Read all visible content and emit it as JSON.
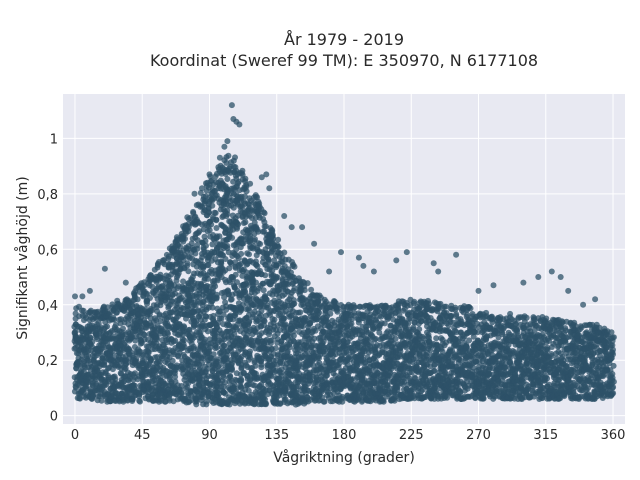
{
  "chart_data": {
    "type": "scatter",
    "title_line1": "År 1979 - 2019",
    "title_line2": "Koordinat (Sweref 99 TM): E 350970, N 6177108",
    "xlabel": "Vågriktning (grader)",
    "ylabel": "Signifikant våghöjd (m)",
    "xlim": [
      -8,
      368
    ],
    "ylim": [
      -0.03,
      1.16
    ],
    "x_ticks": [
      0,
      45,
      90,
      135,
      180,
      225,
      270,
      315,
      360
    ],
    "x_tick_labels": [
      "0",
      "45",
      "90",
      "135",
      "180",
      "225",
      "270",
      "315",
      "360"
    ],
    "y_ticks": [
      0,
      0.2,
      0.4,
      0.6,
      0.8,
      1
    ],
    "y_tick_labels": [
      "0",
      "0,2",
      "0,4",
      "0,6",
      "0,8",
      "1"
    ],
    "grid": true,
    "colors": {
      "background": "#e8e9f2",
      "grid": "#ffffff",
      "marker": "#2e5268"
    },
    "series": [
      {
        "x": [
          0,
          10,
          20,
          30,
          40,
          50,
          60,
          70,
          80,
          90,
          100,
          105,
          110,
          120,
          130,
          140,
          150,
          160,
          170,
          180,
          190,
          200,
          210,
          220,
          230,
          240,
          250,
          260,
          270,
          280,
          290,
          300,
          310,
          320,
          330,
          340,
          350,
          360
        ],
        "y_min": [
          0.06,
          0.06,
          0.05,
          0.05,
          0.05,
          0.05,
          0.05,
          0.05,
          0.04,
          0.04,
          0.04,
          0.04,
          0.04,
          0.04,
          0.04,
          0.04,
          0.04,
          0.05,
          0.05,
          0.05,
          0.05,
          0.05,
          0.05,
          0.06,
          0.06,
          0.06,
          0.06,
          0.06,
          0.06,
          0.06,
          0.06,
          0.06,
          0.06,
          0.06,
          0.06,
          0.06,
          0.06,
          0.07
        ],
        "y_max": [
          0.4,
          0.38,
          0.4,
          0.42,
          0.45,
          0.52,
          0.58,
          0.66,
          0.76,
          0.86,
          0.93,
          0.95,
          0.91,
          0.82,
          0.7,
          0.6,
          0.52,
          0.45,
          0.42,
          0.4,
          0.4,
          0.4,
          0.4,
          0.42,
          0.42,
          0.41,
          0.4,
          0.4,
          0.38,
          0.36,
          0.37,
          0.36,
          0.36,
          0.35,
          0.34,
          0.33,
          0.33,
          0.3
        ],
        "outliers": [
          [
            105,
            1.12
          ],
          [
            106,
            1.07
          ],
          [
            108,
            1.06
          ],
          [
            110,
            1.05
          ],
          [
            102,
            0.99
          ],
          [
            100,
            0.97
          ],
          [
            97,
            0.93
          ],
          [
            90,
            0.87
          ],
          [
            85,
            0.82
          ],
          [
            80,
            0.8
          ],
          [
            125,
            0.86
          ],
          [
            130,
            0.82
          ],
          [
            128,
            0.87
          ],
          [
            140,
            0.72
          ],
          [
            145,
            0.68
          ],
          [
            152,
            0.68
          ],
          [
            160,
            0.62
          ],
          [
            170,
            0.52
          ],
          [
            178,
            0.59
          ],
          [
            190,
            0.57
          ],
          [
            193,
            0.54
          ],
          [
            200,
            0.52
          ],
          [
            215,
            0.56
          ],
          [
            222,
            0.59
          ],
          [
            240,
            0.55
          ],
          [
            243,
            0.52
          ],
          [
            255,
            0.58
          ],
          [
            270,
            0.45
          ],
          [
            280,
            0.47
          ],
          [
            300,
            0.48
          ],
          [
            310,
            0.5
          ],
          [
            319,
            0.52
          ],
          [
            325,
            0.5
          ],
          [
            330,
            0.45
          ],
          [
            340,
            0.4
          ],
          [
            348,
            0.42
          ],
          [
            20,
            0.53
          ],
          [
            10,
            0.45
          ],
          [
            5,
            0.43
          ],
          [
            0,
            0.43
          ],
          [
            34,
            0.48
          ]
        ]
      }
    ]
  }
}
